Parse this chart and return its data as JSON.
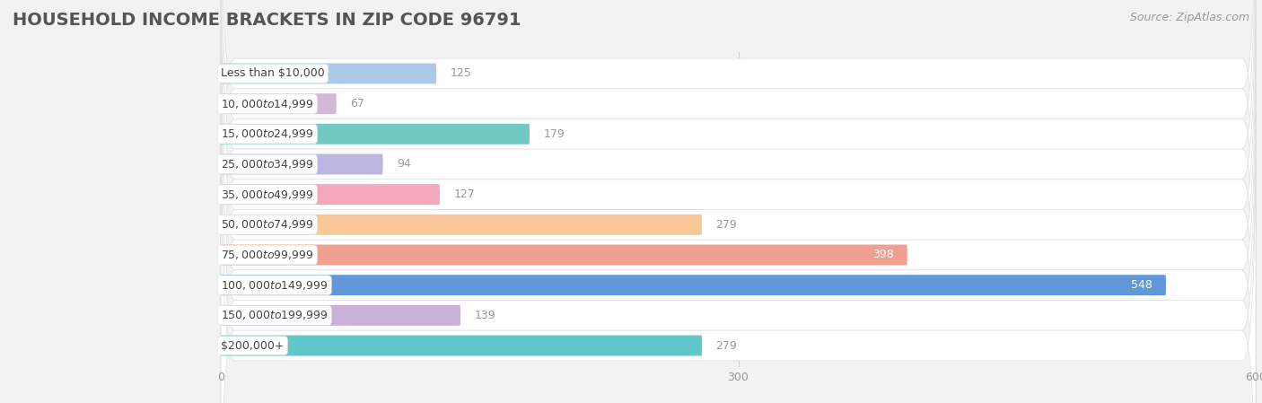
{
  "title": "HOUSEHOLD INCOME BRACKETS IN ZIP CODE 96791",
  "source": "Source: ZipAtlas.com",
  "categories": [
    "Less than $10,000",
    "$10,000 to $14,999",
    "$15,000 to $24,999",
    "$25,000 to $34,999",
    "$35,000 to $49,999",
    "$50,000 to $74,999",
    "$75,000 to $99,999",
    "$100,000 to $149,999",
    "$150,000 to $199,999",
    "$200,000+"
  ],
  "values": [
    125,
    67,
    179,
    94,
    127,
    279,
    398,
    548,
    139,
    279
  ],
  "bar_colors": [
    "#adc9e8",
    "#d3b8d8",
    "#72c8c3",
    "#bab8e0",
    "#f5a8bc",
    "#f8c898",
    "#f0a090",
    "#6098d8",
    "#c8b0d8",
    "#60c8c8"
  ],
  "xlim": [
    0,
    600
  ],
  "xticks": [
    0,
    300,
    600
  ],
  "label_color_inside": "#ffffff",
  "label_color_outside": "#999999",
  "inside_threshold": 300,
  "background_color": "#f2f2f2",
  "bar_row_color": "#ffffff",
  "title_fontsize": 14,
  "source_fontsize": 9,
  "value_fontsize": 9,
  "tick_fontsize": 9,
  "category_fontsize": 9
}
